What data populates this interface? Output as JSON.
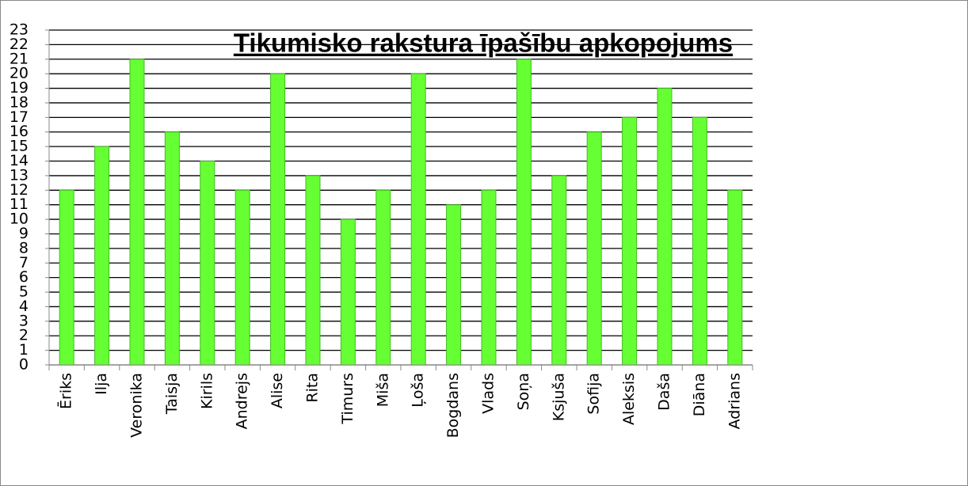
{
  "chart_data": {
    "type": "bar",
    "title": "Tikumisko rakstura īpašību apkopojums",
    "categories": [
      "Ēriks",
      "Ilja",
      "Veronika",
      "Taisja",
      "Kirils",
      "Andrejs",
      "Alise",
      "Rita",
      "Timurs",
      "Miša",
      "Ļoša",
      "Bogdans",
      "Vlads",
      "Soņa",
      "Ksjuša",
      "Sofija",
      "Aleksis",
      "Daša",
      "Diāna",
      "Adrians"
    ],
    "values": [
      12,
      15,
      21,
      16,
      14,
      12,
      20,
      13,
      10,
      12,
      20,
      11,
      12,
      21,
      13,
      16,
      17,
      19,
      17,
      12
    ],
    "color": "#66ff33",
    "ylim": [
      0,
      23
    ],
    "yticks": [
      0,
      1,
      2,
      3,
      4,
      5,
      6,
      7,
      8,
      9,
      10,
      11,
      12,
      13,
      14,
      15,
      16,
      17,
      18,
      19,
      20,
      21,
      22,
      23
    ],
    "grid": true
  }
}
